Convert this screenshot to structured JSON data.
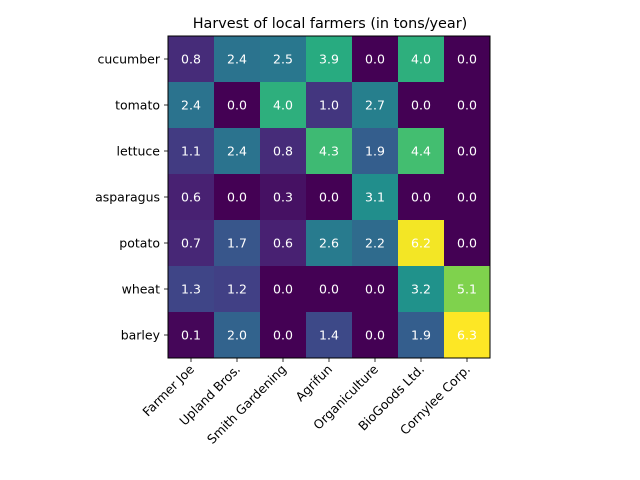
{
  "chart_data": {
    "type": "heatmap",
    "title": "Harvest of local farmers (in tons/year)",
    "xlabel": "",
    "ylabel": "",
    "x_categories": [
      "Farmer Joe",
      "Upland Bros.",
      "Smith Gardening",
      "Agrifun",
      "Organiculture",
      "BioGoods Ltd.",
      "Cornylee Corp."
    ],
    "y_categories": [
      "cucumber",
      "tomato",
      "lettuce",
      "asparagus",
      "potato",
      "wheat",
      "barley"
    ],
    "values": [
      [
        0.8,
        2.4,
        2.5,
        3.9,
        0.0,
        4.0,
        0.0
      ],
      [
        2.4,
        0.0,
        4.0,
        1.0,
        2.7,
        0.0,
        0.0
      ],
      [
        1.1,
        2.4,
        0.8,
        4.3,
        1.9,
        4.4,
        0.0
      ],
      [
        0.6,
        0.0,
        0.3,
        0.0,
        3.1,
        0.0,
        0.0
      ],
      [
        0.7,
        1.7,
        0.6,
        2.6,
        2.2,
        6.2,
        0.0
      ],
      [
        1.3,
        1.2,
        0.0,
        0.0,
        0.0,
        3.2,
        5.1
      ],
      [
        0.1,
        2.0,
        0.0,
        1.4,
        0.0,
        1.9,
        6.3
      ]
    ],
    "colormap": "viridis",
    "value_range": [
      0.0,
      6.3
    ],
    "grid": false,
    "annotations": "cell values shown in white"
  }
}
